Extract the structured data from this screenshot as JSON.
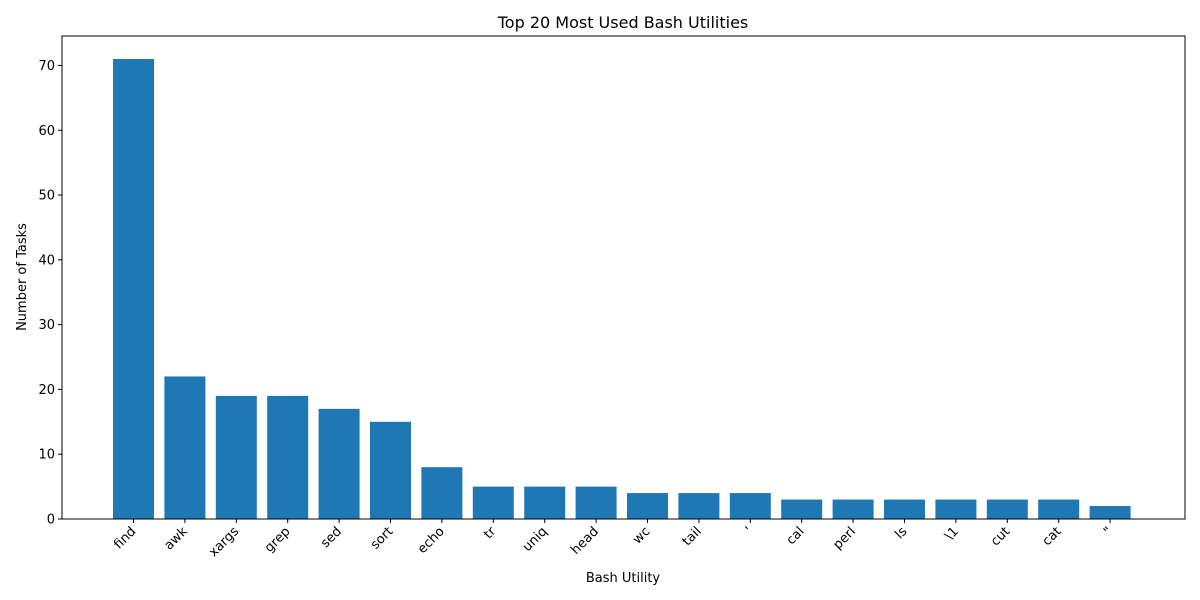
{
  "chart_data": {
    "type": "bar",
    "title": "Top 20 Most Used Bash Utilities",
    "xlabel": "Bash Utility",
    "ylabel": "Number of Tasks",
    "categories": [
      "find",
      "awk",
      "xargs",
      "grep",
      "sed",
      "sort",
      "echo",
      "tr",
      "uniq",
      "head",
      "wc",
      "tail",
      "'",
      "cal",
      "perl",
      "ls",
      "\\1",
      "cut",
      "cat",
      "\""
    ],
    "values": [
      71,
      22,
      19,
      19,
      17,
      15,
      8,
      5,
      5,
      5,
      4,
      4,
      4,
      3,
      3,
      3,
      3,
      3,
      3,
      2
    ],
    "ylim": [
      0,
      74.55
    ],
    "yticks": [
      0,
      10,
      20,
      30,
      40,
      50,
      60,
      70
    ],
    "bar_color": "#1f77b4",
    "grid": false,
    "legend": false
  }
}
